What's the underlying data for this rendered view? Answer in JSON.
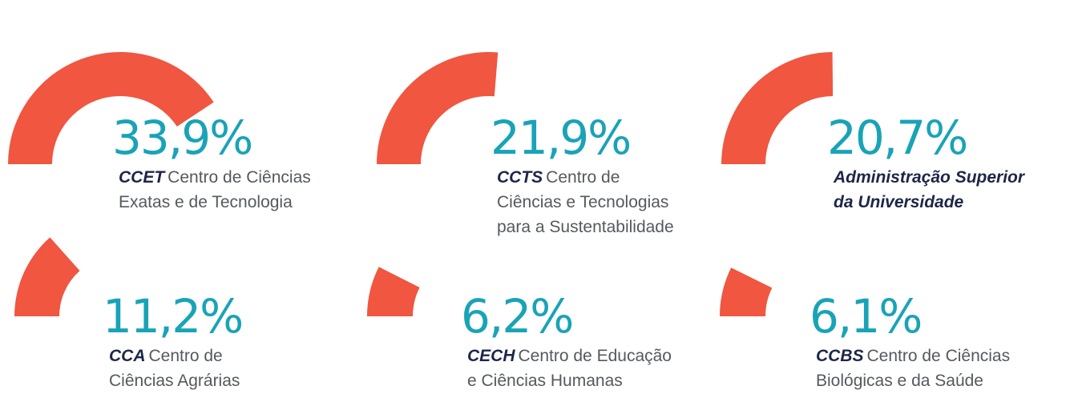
{
  "items": [
    {
      "value": 33.9,
      "value_label": "33,9%",
      "code": "CCET",
      "lines": [
        "Centro de Ciências",
        "Exatas e de Tecnologia"
      ]
    },
    {
      "value": 21.9,
      "value_label": "21,9%",
      "code": "CCTS",
      "lines": [
        "Centro de",
        "Ciências e Tecnologias",
        "para a Sustentabilidade"
      ]
    },
    {
      "value": 20.7,
      "value_label": "20,7%",
      "bold_lines": [
        "Administração Superior",
        "da Universidade"
      ]
    },
    {
      "value": 11.2,
      "value_label": "11,2%",
      "code": "CCA",
      "lines": [
        "Centro de",
        "Ciências Agrárias"
      ]
    },
    {
      "value": 6.2,
      "value_label": "6,2%",
      "code": "CECH",
      "lines": [
        "Centro de Educação",
        "e Ciências Humanas"
      ]
    },
    {
      "value": 6.1,
      "value_label": "6,1%",
      "code": "CCBS",
      "lines": [
        "Centro de Ciências",
        "Biológicas e da Saúde"
      ]
    }
  ],
  "arc_color": "#f05640"
}
